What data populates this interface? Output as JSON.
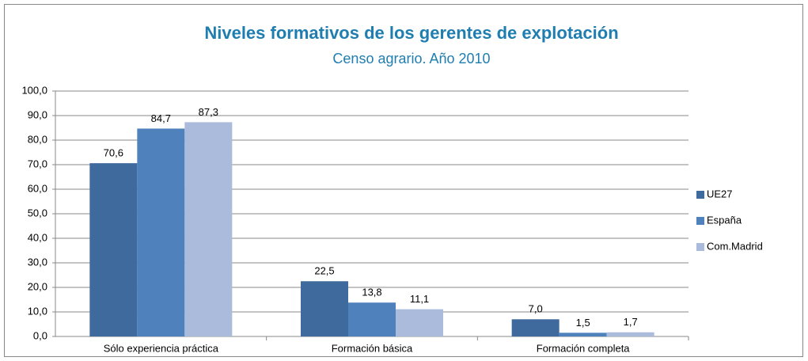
{
  "chart_data": {
    "type": "bar",
    "title": "Niveles formativos de los gerentes de explotación",
    "subtitle": "Censo agrario. Año 2010",
    "categories": [
      "Sólo experiencia práctica",
      "Formación básica",
      "Formación completa"
    ],
    "series": [
      {
        "name": "UE27",
        "color": "#3f6a9e",
        "values": [
          70.6,
          22.5,
          7.0
        ],
        "value_labels": [
          "70,6",
          "22,5",
          "7,0"
        ]
      },
      {
        "name": "España",
        "color": "#4f81bd",
        "values": [
          84.7,
          13.8,
          1.5
        ],
        "value_labels": [
          "84,7",
          "13,8",
          "1,5"
        ]
      },
      {
        "name": "Com.Madrid",
        "color": "#abbbdb",
        "values": [
          87.3,
          11.1,
          1.7
        ],
        "value_labels": [
          "87,3",
          "11,1",
          "1,7"
        ]
      }
    ],
    "ylim": [
      0,
      100
    ],
    "yticks": [
      {
        "value": 0,
        "label": "0,0"
      },
      {
        "value": 10,
        "label": "10,0"
      },
      {
        "value": 20,
        "label": "20,0"
      },
      {
        "value": 30,
        "label": "30,0"
      },
      {
        "value": 40,
        "label": "40,0"
      },
      {
        "value": 50,
        "label": "50,0"
      },
      {
        "value": 60,
        "label": "60,0"
      },
      {
        "value": 70,
        "label": "70,0"
      },
      {
        "value": 80,
        "label": "80,0"
      },
      {
        "value": 90,
        "label": "90,0"
      },
      {
        "value": 100,
        "label": "100,0"
      }
    ],
    "grid": true,
    "legend": "right"
  }
}
